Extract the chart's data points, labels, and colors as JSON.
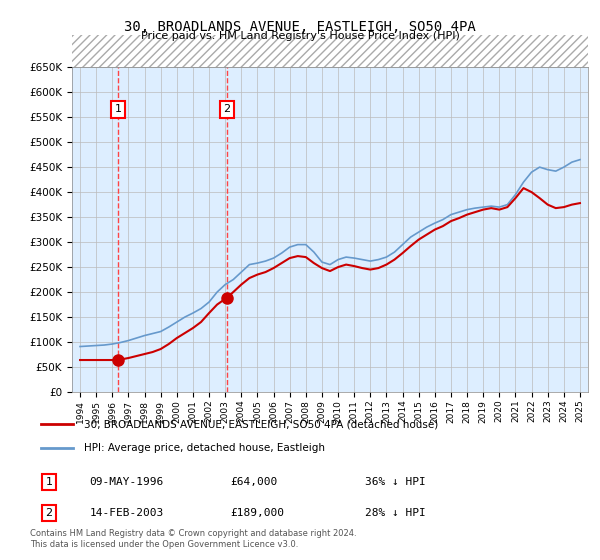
{
  "title": "30, BROADLANDS AVENUE, EASTLEIGH, SO50 4PA",
  "subtitle": "Price paid vs. HM Land Registry's House Price Index (HPI)",
  "ylim": [
    0,
    650000
  ],
  "yticks": [
    0,
    50000,
    100000,
    150000,
    200000,
    250000,
    300000,
    350000,
    400000,
    450000,
    500000,
    550000,
    600000,
    650000
  ],
  "hatch_above": 650000,
  "bg_color": "#ffffff",
  "plot_bg": "#ddeeff",
  "hatch_color": "#cccccc",
  "grid_color": "#bbbbbb",
  "transaction1": {
    "year": 1996.37,
    "price": 64000,
    "label": "1"
  },
  "transaction2": {
    "year": 2003.12,
    "price": 189000,
    "label": "2"
  },
  "hpi_color": "#6699cc",
  "price_color": "#cc0000",
  "vline_color": "#ff4444",
  "footnote": "Contains HM Land Registry data © Crown copyright and database right 2024.\nThis data is licensed under the Open Government Licence v3.0.",
  "legend_line1": "30, BROADLANDS AVENUE, EASTLEIGH, SO50 4PA (detached house)",
  "legend_line2": "HPI: Average price, detached house, Eastleigh",
  "table": [
    [
      "1",
      "09-MAY-1996",
      "£64,000",
      "36% ↓ HPI"
    ],
    [
      "2",
      "14-FEB-2003",
      "£189,000",
      "28% ↓ HPI"
    ]
  ],
  "hpi_data_x": [
    1994.0,
    1994.5,
    1995.0,
    1995.5,
    1996.0,
    1996.5,
    1997.0,
    1997.5,
    1998.0,
    1998.5,
    1999.0,
    1999.5,
    2000.0,
    2000.5,
    2001.0,
    2001.5,
    2002.0,
    2002.5,
    2003.0,
    2003.5,
    2004.0,
    2004.5,
    2005.0,
    2005.5,
    2006.0,
    2006.5,
    2007.0,
    2007.5,
    2008.0,
    2008.5,
    2009.0,
    2009.5,
    2010.0,
    2010.5,
    2011.0,
    2011.5,
    2012.0,
    2012.5,
    2013.0,
    2013.5,
    2014.0,
    2014.5,
    2015.0,
    2015.5,
    2016.0,
    2016.5,
    2017.0,
    2017.5,
    2018.0,
    2018.5,
    2019.0,
    2019.5,
    2020.0,
    2020.5,
    2021.0,
    2021.5,
    2022.0,
    2022.5,
    2023.0,
    2023.5,
    2024.0,
    2024.5,
    2025.0
  ],
  "hpi_data_y": [
    91000,
    92000,
    93000,
    94000,
    96000,
    99000,
    103000,
    108000,
    113000,
    117000,
    121000,
    130000,
    140000,
    150000,
    158000,
    167000,
    180000,
    200000,
    215000,
    225000,
    240000,
    255000,
    258000,
    262000,
    268000,
    278000,
    290000,
    295000,
    295000,
    280000,
    260000,
    255000,
    265000,
    270000,
    268000,
    265000,
    262000,
    265000,
    270000,
    280000,
    295000,
    310000,
    320000,
    330000,
    338000,
    345000,
    355000,
    360000,
    365000,
    368000,
    370000,
    372000,
    370000,
    375000,
    395000,
    420000,
    440000,
    450000,
    445000,
    442000,
    450000,
    460000,
    465000
  ],
  "price_data_x": [
    1994.0,
    1996.37,
    1996.5,
    1997.0,
    1997.5,
    1998.0,
    1998.5,
    1999.0,
    1999.5,
    2000.0,
    2000.5,
    2001.0,
    2001.5,
    2002.0,
    2002.5,
    2003.12,
    2003.5,
    2004.0,
    2004.5,
    2005.0,
    2005.5,
    2006.0,
    2006.5,
    2007.0,
    2007.5,
    2008.0,
    2008.5,
    2009.0,
    2009.5,
    2010.0,
    2010.5,
    2011.0,
    2011.5,
    2012.0,
    2012.5,
    2013.0,
    2013.5,
    2014.0,
    2014.5,
    2015.0,
    2015.5,
    2016.0,
    2016.5,
    2017.0,
    2017.5,
    2018.0,
    2018.5,
    2019.0,
    2019.5,
    2020.0,
    2020.5,
    2021.0,
    2021.5,
    2022.0,
    2022.5,
    2023.0,
    2023.5,
    2024.0,
    2024.5,
    2025.0
  ],
  "price_data_y": [
    64000,
    64000,
    65000,
    68000,
    72000,
    76000,
    80000,
    86000,
    96000,
    108000,
    118000,
    128000,
    140000,
    158000,
    175000,
    189000,
    200000,
    215000,
    228000,
    235000,
    240000,
    248000,
    258000,
    268000,
    272000,
    270000,
    258000,
    248000,
    242000,
    250000,
    255000,
    252000,
    248000,
    245000,
    248000,
    255000,
    265000,
    278000,
    292000,
    305000,
    315000,
    325000,
    332000,
    342000,
    348000,
    355000,
    360000,
    365000,
    368000,
    365000,
    370000,
    388000,
    408000,
    400000,
    388000,
    375000,
    368000,
    370000,
    375000,
    378000
  ]
}
